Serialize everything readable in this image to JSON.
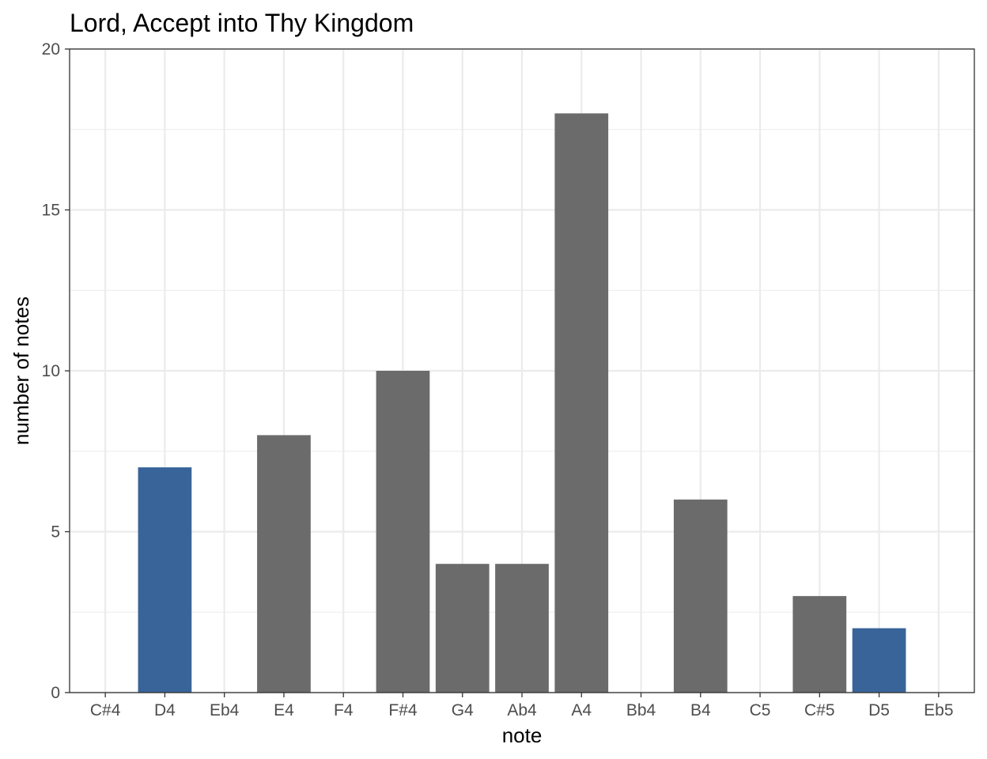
{
  "chart_data": {
    "type": "bar",
    "title": "Lord, Accept into Thy Kingdom",
    "xlabel": "note",
    "ylabel": "number of notes",
    "categories": [
      "C#4",
      "D4",
      "Eb4",
      "E4",
      "F4",
      "F#4",
      "G4",
      "Ab4",
      "A4",
      "Bb4",
      "B4",
      "C5",
      "C#5",
      "D5",
      "Eb5"
    ],
    "values": [
      0,
      7,
      0,
      8,
      0,
      10,
      4,
      4,
      18,
      0,
      6,
      0,
      3,
      2,
      0
    ],
    "highlight": [
      "D4",
      "D5"
    ],
    "colors": {
      "bar": "#6b6b6b",
      "highlight": "#386499",
      "grid": "#ebebeb",
      "panel_border": "#333333"
    },
    "ylim": [
      0,
      20
    ],
    "yticks": [
      0,
      5,
      10,
      15,
      20
    ],
    "grid": true,
    "legend": "none"
  }
}
